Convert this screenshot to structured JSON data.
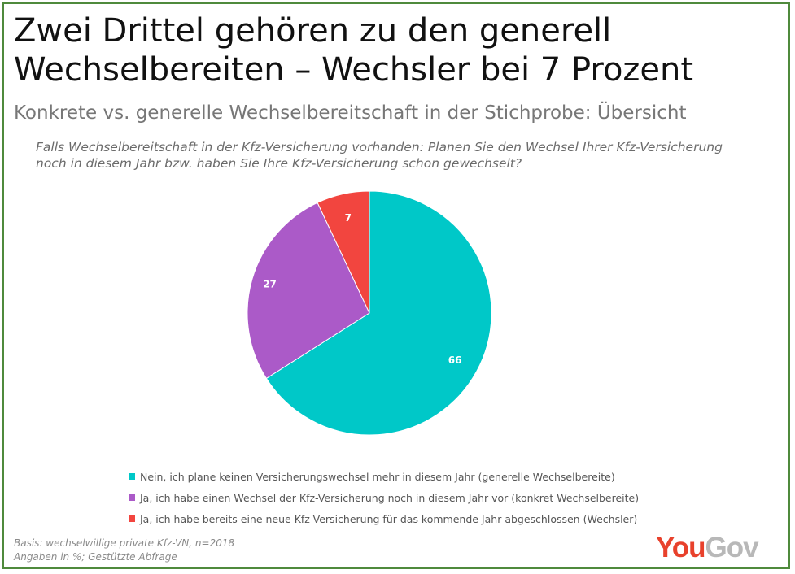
{
  "header": {
    "title_line1": "Zwei Drittel gehören zu den generell",
    "title_line2": "Wechselbereiten – Wechsler bei 7 Prozent",
    "subtitle": "Konkrete vs. generelle Wechselbereitschaft in der Stichprobe: Übersicht",
    "question": "Falls Wechselbereitschaft in der Kfz-Versicherung vorhanden: Planen Sie den Wechsel Ihrer Kfz-Versicherung noch in diesem Jahr bzw. haben Sie Ihre Kfz-Versicherung schon gewechselt?"
  },
  "chart_data": {
    "type": "pie",
    "title": "",
    "slices": [
      {
        "label": "Nein, ich plane keinen Versicherungswechsel mehr in diesem Jahr (generelle Wechselbereite)",
        "value": 66,
        "color": "#00c8c8"
      },
      {
        "label": "Ja, ich habe einen Wechsel der Kfz-Versicherung noch in diesem Jahr vor (konkret Wechselbereite)",
        "value": 27,
        "color": "#ab5ac8"
      },
      {
        "label": "Ja, ich habe bereits eine neue Kfz-Versicherung für das kommende Jahr abgeschlossen (Wechsler)",
        "value": 7,
        "color": "#f2453f"
      }
    ],
    "legend_position": "bottom"
  },
  "footer": {
    "basis": "Basis: wechselwillige private Kfz-VN, n=2018",
    "note": "Angaben in %; Gestützte Abfrage",
    "logo_you": "You",
    "logo_gov": "Gov"
  }
}
